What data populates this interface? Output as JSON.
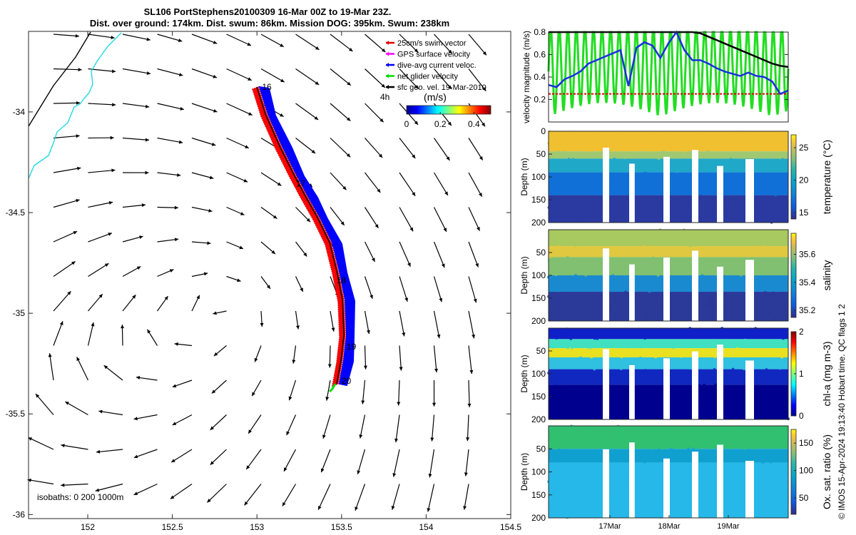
{
  "title": {
    "line1": "SL106 PortStephens20100309 16-Mar 00Z to 19-Mar 23Z.",
    "line2": "Dist. over ground: 174km. Dist. swum: 86km. Mission DOG: 395km. Swum: 238km"
  },
  "map": {
    "x_ticks": [
      "152",
      "152.5",
      "153",
      "153.5",
      "154",
      "154.5"
    ],
    "y_ticks": [
      "-34",
      "-34.5",
      "-35",
      "-35.5",
      "-36"
    ],
    "xlim": [
      151.65,
      154.5
    ],
    "ylim": [
      -36.02,
      -33.6
    ],
    "legend": [
      {
        "label": "25cm/s swim vector",
        "color": "#e00000"
      },
      {
        "label": "GPS surface velocity",
        "color": "#ff00ff"
      },
      {
        "label": "dive-avg current veloc.",
        "color": "#0000ff"
      },
      {
        "label": "net glider velocity",
        "color": "#00dd00"
      },
      {
        "label": "sfc geo. vel. 19-Mar-2010",
        "color": "#000000"
      }
    ],
    "colorbar": {
      "unit": "(m/s)",
      "ticks": [
        "0",
        "0.2",
        "0.4"
      ],
      "min": 0,
      "max": 0.5,
      "interval_label": "4h"
    },
    "day_labels": [
      {
        "text": "16",
        "lon": 153.03,
        "lat": -33.89
      },
      {
        "text": "17",
        "lon": 153.23,
        "lat": -34.37
      },
      {
        "text": "18",
        "lon": 153.47,
        "lat": -34.85
      },
      {
        "text": "19",
        "lon": 153.53,
        "lat": -35.18
      },
      {
        "text": "20",
        "lon": 153.5,
        "lat": -35.35
      }
    ],
    "isobaths_label": "isobaths: 0   200  1000m"
  },
  "velocity_panel": {
    "ylabel": "velocity magnitude (m/s)",
    "y_ticks": [
      "0.2",
      "0.4",
      "0.6",
      "0.8"
    ],
    "ylim": [
      0,
      0.8
    ],
    "swim_speed": 0.25,
    "dive_avg": [
      0.33,
      0.31,
      0.38,
      0.41,
      0.45,
      0.52,
      0.55,
      0.58,
      0.61,
      0.64,
      0.32,
      0.66,
      0.71,
      0.68,
      0.57,
      0.7,
      0.8,
      0.64,
      0.55,
      0.55,
      0.52,
      0.48,
      0.45,
      0.43,
      0.41,
      0.44,
      0.41,
      0.4,
      0.36,
      0.25,
      0.28
    ],
    "geo_black": [
      0.8,
      0.8,
      0.8,
      0.8,
      0.8,
      0.8,
      0.8,
      0.8,
      0.8,
      0.8,
      0.8,
      0.8,
      0.8,
      0.8,
      0.8,
      0.8,
      0.8,
      0.8,
      0.8,
      0.79,
      0.76,
      0.73,
      0.7,
      0.67,
      0.64,
      0.61,
      0.58,
      0.55,
      0.52,
      0.5,
      0.49
    ]
  },
  "profile_panels": [
    {
      "cblabel": "temperature (°C)",
      "cb_ticks": [
        "15",
        "20",
        "25"
      ],
      "cb_range": [
        14,
        27
      ],
      "depth_label": "Depth (m)",
      "depth_ticks": [
        "0",
        "50",
        "100",
        "150",
        "200"
      ]
    },
    {
      "cblabel": "salinity",
      "cb_ticks": [
        "35.2",
        "35.4",
        "35.6"
      ],
      "cb_range": [
        35.15,
        35.75
      ],
      "depth_label": "Depth (m)",
      "depth_ticks": [
        "",
        "50",
        "100",
        "150",
        "200"
      ]
    },
    {
      "cblabel": "chl-a (mg m-3)",
      "cb_ticks": [
        "0",
        "1",
        "2"
      ],
      "cb_range": [
        0,
        2
      ],
      "depth_label": "Depth (m)",
      "depth_ticks": [
        "",
        "50",
        "100",
        "150",
        "200"
      ]
    },
    {
      "cblabel": "Ox. sat. ratio (%)",
      "cb_ticks": [
        "50",
        "100",
        "150"
      ],
      "cb_range": [
        20,
        175
      ],
      "depth_label": "Depth (m)",
      "depth_ticks": [
        "",
        "50",
        "100",
        "150",
        "200"
      ]
    }
  ],
  "time_ticks": [
    "17Mar",
    "18Mar",
    "19Mar"
  ],
  "credit": "© IMOS 15-Apr-2024 19:13:40 Hobart time. QC flags 1  2",
  "chart_data": [
    {
      "type": "scatter",
      "title": "SL106 PortStephens20100309 16-Mar 00Z to 19-Mar 23Z.",
      "xlim": [
        151.65,
        154.5
      ],
      "ylim": [
        -36.02,
        -33.6
      ]
    },
    {
      "type": "line",
      "ylabel": "velocity magnitude (m/s)",
      "ylim": [
        0,
        0.8
      ]
    },
    {
      "type": "heatmap",
      "ylabel": "Depth (m)",
      "colorbar": "temperature (°C)"
    },
    {
      "type": "heatmap",
      "ylabel": "Depth (m)",
      "colorbar": "salinity"
    },
    {
      "type": "heatmap",
      "ylabel": "Depth (m)",
      "colorbar": "chl-a (mg m-3)"
    },
    {
      "type": "heatmap",
      "ylabel": "Depth (m)",
      "colorbar": "Ox. sat. ratio (%)"
    }
  ]
}
